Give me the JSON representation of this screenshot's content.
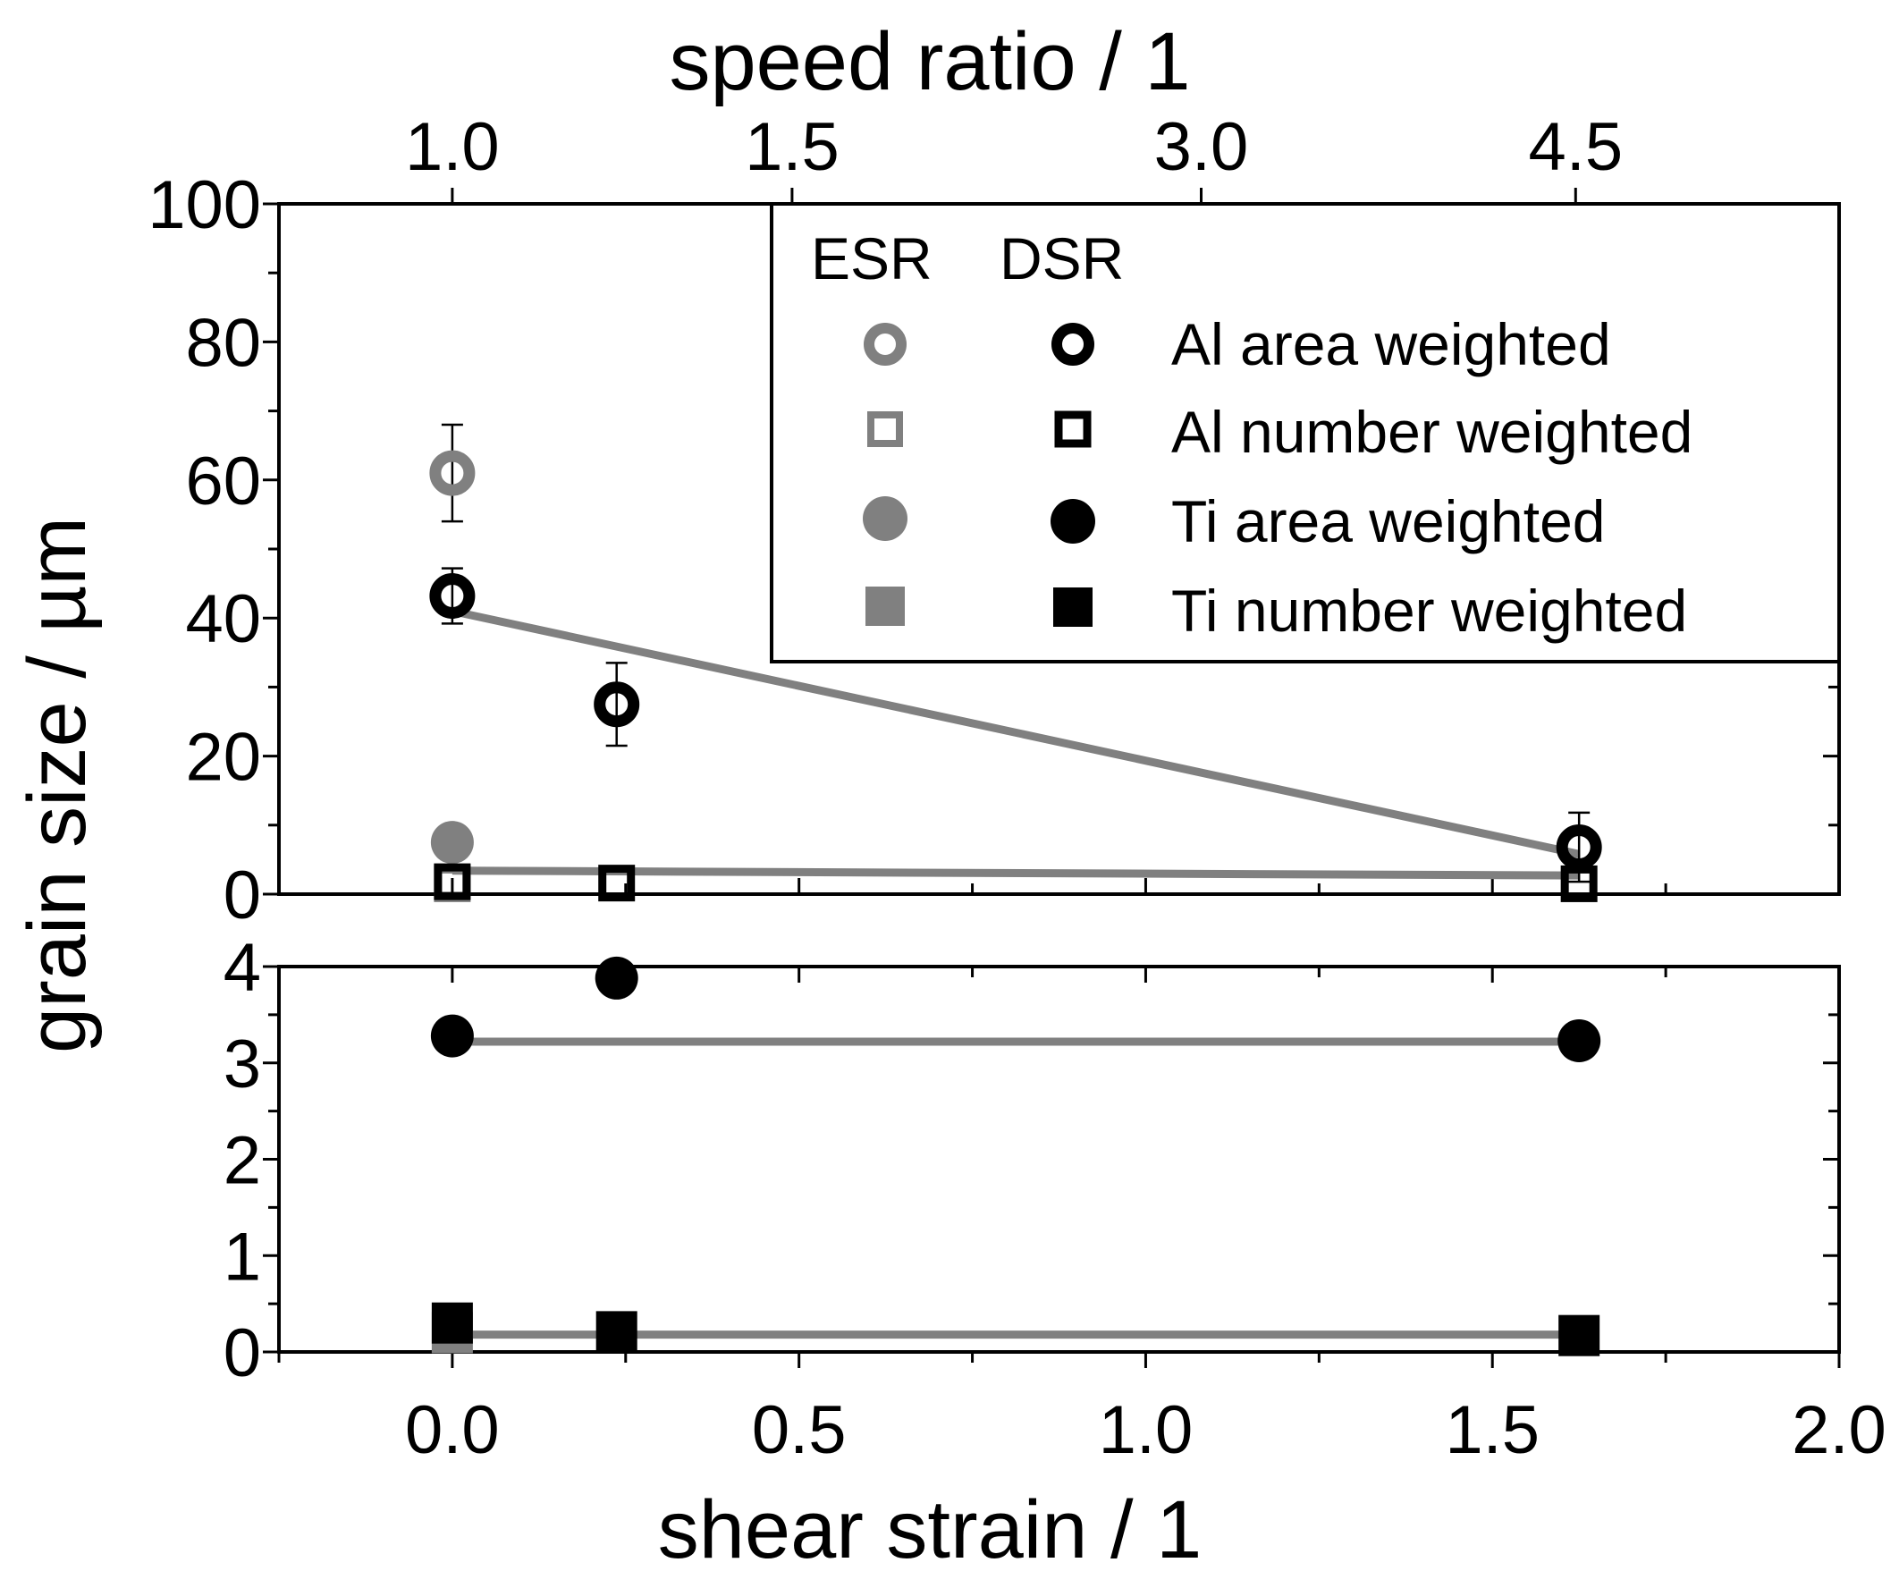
{
  "chart_data": {
    "type": "scatter",
    "xlabel": "shear strain / 1",
    "x2label": "speed ratio / 1",
    "ylabel": "grain size / µm",
    "xlim": [
      -0.25,
      2.0
    ],
    "x_ticks": [
      "0.0",
      "0.5",
      "1.0",
      "1.5",
      "2.0"
    ],
    "x_tick_values": [
      0.0,
      0.5,
      1.0,
      1.5,
      2.0
    ],
    "top_ticks": [
      {
        "label": "1.0",
        "strain": 0.0
      },
      {
        "label": "1.5",
        "strain": 0.49
      },
      {
        "label": "3.0",
        "strain": 1.08
      },
      {
        "label": "4.5",
        "strain": 1.62
      }
    ],
    "panels": {
      "upper": {
        "ylim": [
          0,
          100
        ],
        "y_ticks": [
          "0",
          "20",
          "40",
          "60",
          "80",
          "100"
        ],
        "y_tick_values": [
          0,
          20,
          40,
          60,
          80,
          100
        ]
      },
      "lower": {
        "ylim": [
          0,
          4
        ],
        "y_ticks": [
          "0",
          "1",
          "2",
          "3",
          "4"
        ],
        "y_tick_values": [
          0,
          1,
          2,
          3,
          4
        ]
      }
    },
    "legend": {
      "position": "top-right",
      "col_headers": [
        "ESR",
        "DSR"
      ],
      "entries": [
        "Al area weighted",
        "Al number weighted",
        "Ti area weighted",
        "Ti number weighted"
      ]
    },
    "series": [
      {
        "name": "ESR Al area weighted",
        "panel": "upper",
        "marker": "ring",
        "color": "#808080",
        "points": [
          {
            "x": 0.0,
            "y": 61,
            "err": 7
          }
        ]
      },
      {
        "name": "ESR Al number weighted",
        "panel": "upper",
        "marker": "open-square",
        "color": "#808080",
        "points": [
          {
            "x": 0.0,
            "y": 1.5
          }
        ]
      },
      {
        "name": "ESR Ti area weighted",
        "panel": "upper",
        "marker": "filled-circle",
        "color": "#808080",
        "points": [
          {
            "x": 0.0,
            "y": 7.5
          }
        ]
      },
      {
        "name": "ESR Ti number weighted",
        "panel": "lower",
        "marker": "filled-square",
        "color": "#808080",
        "points": [
          {
            "x": 0.0,
            "y": 0.2
          }
        ]
      },
      {
        "name": "DSR Al area weighted",
        "panel": "upper",
        "marker": "ring",
        "color": "#000000",
        "points": [
          {
            "x": 0.0,
            "y": 43.2,
            "err": 4
          },
          {
            "x": 0.237,
            "y": 27.5,
            "err": 6
          },
          {
            "x": 1.625,
            "y": 6.8,
            "err": 5
          }
        ]
      },
      {
        "name": "DSR Al number weighted",
        "panel": "upper",
        "marker": "open-square",
        "color": "#000000",
        "points": [
          {
            "x": 0.0,
            "y": 1.8
          },
          {
            "x": 0.237,
            "y": 1.6
          },
          {
            "x": 1.625,
            "y": 1.5
          }
        ]
      },
      {
        "name": "DSR Ti area weighted",
        "panel": "lower",
        "marker": "filled-circle",
        "color": "#000000",
        "points": [
          {
            "x": 0.0,
            "y": 3.28
          },
          {
            "x": 0.237,
            "y": 3.88
          },
          {
            "x": 1.625,
            "y": 3.23
          }
        ]
      },
      {
        "name": "DSR Ti number weighted",
        "panel": "lower",
        "marker": "filled-square",
        "color": "#000000",
        "points": [
          {
            "x": 0.0,
            "y": 0.3
          },
          {
            "x": 0.237,
            "y": 0.21
          },
          {
            "x": 1.625,
            "y": 0.17
          }
        ]
      }
    ],
    "trend_lines": [
      {
        "name": "Al area weighted fit",
        "panel": "upper",
        "x": [
          0.0,
          1.625
        ],
        "y": [
          41.0,
          5.8
        ],
        "color": "#808080"
      },
      {
        "name": "Al number weighted fit",
        "panel": "upper",
        "x": [
          0.0,
          1.625
        ],
        "y": [
          3.4,
          2.7
        ],
        "color": "#808080"
      },
      {
        "name": "Ti area weighted fit",
        "panel": "lower",
        "x": [
          0.0,
          1.625
        ],
        "y": [
          3.22,
          3.22
        ],
        "color": "#808080"
      },
      {
        "name": "Ti number weighted fit",
        "panel": "lower",
        "x": [
          0.0,
          1.625
        ],
        "y": [
          0.18,
          0.18
        ],
        "color": "#808080"
      }
    ]
  }
}
